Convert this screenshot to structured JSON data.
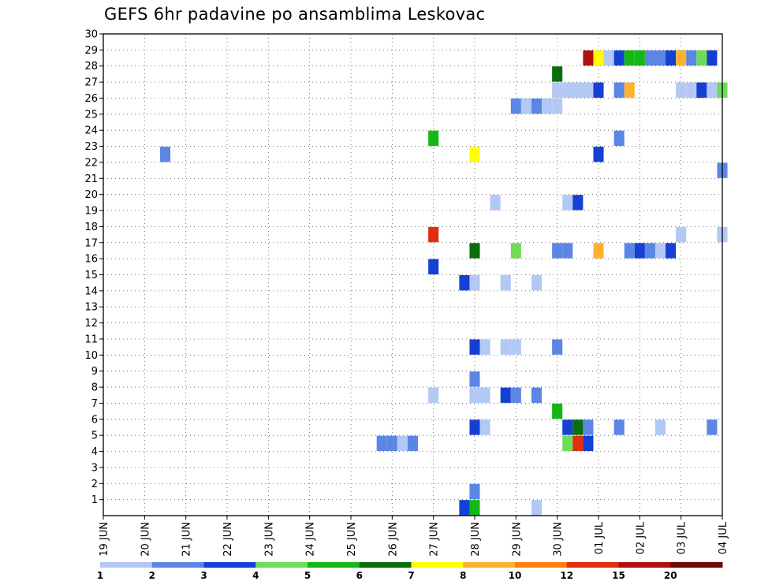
{
  "chart_data": {
    "type": "heatmap",
    "title": "GEFS 6hr padavine po ansamblima Leskovac",
    "x_tick_labels": [
      "19 JUN",
      "20 JUN",
      "21 JUN",
      "22 JUN",
      "23 JUN",
      "24 JUN",
      "25 JUN",
      "26 JUN",
      "27 JUN",
      "28 JUN",
      "29 JUN",
      "30 JUN",
      "01 JUL",
      "02 JUL",
      "03 JUL",
      "04 JUL"
    ],
    "x_range_steps": [
      0,
      60
    ],
    "y_tick_labels": [
      "1",
      "2",
      "3",
      "4",
      "5",
      "6",
      "7",
      "8",
      "9",
      "10",
      "11",
      "12",
      "13",
      "14",
      "15",
      "16",
      "17",
      "18",
      "19",
      "20",
      "21",
      "22",
      "23",
      "24",
      "25",
      "26",
      "27",
      "28",
      "29",
      "30"
    ],
    "y_range": [
      0,
      30
    ],
    "grid": true,
    "legend_placement": "bottom",
    "color_scale": {
      "labels": [
        "1",
        "2",
        "3",
        "4",
        "5",
        "6",
        "7",
        "8",
        "10",
        "12",
        "15",
        "20"
      ],
      "colors": [
        "#b3c8f5",
        "#5b86e5",
        "#1540d4",
        "#6fdc58",
        "#14b814",
        "#0a6e0a",
        "#ffff00",
        "#ffb12e",
        "#ff7f0e",
        "#e02e0e",
        "#b01010",
        "#700808"
      ]
    },
    "cells": [
      {
        "step": 35,
        "member": 0,
        "level": 3
      },
      {
        "step": 36,
        "member": 0,
        "level": 5
      },
      {
        "step": 42,
        "member": 0,
        "level": 1
      },
      {
        "step": 36,
        "member": 1,
        "level": 2
      },
      {
        "step": 27,
        "member": 4,
        "level": 2
      },
      {
        "step": 28,
        "member": 4,
        "level": 2
      },
      {
        "step": 29,
        "member": 4,
        "level": 1
      },
      {
        "step": 30,
        "member": 4,
        "level": 2
      },
      {
        "step": 45,
        "member": 4,
        "level": 4
      },
      {
        "step": 46,
        "member": 4,
        "level": 10
      },
      {
        "step": 47,
        "member": 4,
        "level": 3
      },
      {
        "step": 36,
        "member": 5,
        "level": 3
      },
      {
        "step": 37,
        "member": 5,
        "level": 1
      },
      {
        "step": 45,
        "member": 5,
        "level": 3
      },
      {
        "step": 46,
        "member": 5,
        "level": 6
      },
      {
        "step": 47,
        "member": 5,
        "level": 2
      },
      {
        "step": 50,
        "member": 5,
        "level": 2
      },
      {
        "step": 54,
        "member": 5,
        "level": 1
      },
      {
        "step": 59,
        "member": 5,
        "level": 2
      },
      {
        "step": 44,
        "member": 6,
        "level": 5
      },
      {
        "step": 32,
        "member": 7,
        "level": 1
      },
      {
        "step": 36,
        "member": 7,
        "level": 1
      },
      {
        "step": 37,
        "member": 7,
        "level": 1
      },
      {
        "step": 39,
        "member": 7,
        "level": 3
      },
      {
        "step": 40,
        "member": 7,
        "level": 2
      },
      {
        "step": 42,
        "member": 7,
        "level": 2
      },
      {
        "step": 36,
        "member": 8,
        "level": 2
      },
      {
        "step": 36,
        "member": 10,
        "level": 3
      },
      {
        "step": 37,
        "member": 10,
        "level": 1
      },
      {
        "step": 39,
        "member": 10,
        "level": 1
      },
      {
        "step": 40,
        "member": 10,
        "level": 1
      },
      {
        "step": 44,
        "member": 10,
        "level": 2
      },
      {
        "step": 35,
        "member": 14,
        "level": 3
      },
      {
        "step": 36,
        "member": 14,
        "level": 1
      },
      {
        "step": 39,
        "member": 14,
        "level": 1
      },
      {
        "step": 42,
        "member": 14,
        "level": 1
      },
      {
        "step": 32,
        "member": 15,
        "level": 3
      },
      {
        "step": 36,
        "member": 16,
        "level": 6
      },
      {
        "step": 40,
        "member": 16,
        "level": 4
      },
      {
        "step": 44,
        "member": 16,
        "level": 2
      },
      {
        "step": 45,
        "member": 16,
        "level": 2
      },
      {
        "step": 48,
        "member": 16,
        "level": 8
      },
      {
        "step": 51,
        "member": 16,
        "level": 2
      },
      {
        "step": 52,
        "member": 16,
        "level": 3
      },
      {
        "step": 53,
        "member": 16,
        "level": 2
      },
      {
        "step": 54,
        "member": 16,
        "level": 1
      },
      {
        "step": 55,
        "member": 16,
        "level": 3
      },
      {
        "step": 32,
        "member": 17,
        "level": 10
      },
      {
        "step": 56,
        "member": 17,
        "level": 1
      },
      {
        "step": 60,
        "member": 17,
        "level": 1
      },
      {
        "step": 38,
        "member": 19,
        "level": 1
      },
      {
        "step": 45,
        "member": 19,
        "level": 1
      },
      {
        "step": 46,
        "member": 19,
        "level": 3
      },
      {
        "step": 60,
        "member": 21,
        "level": 2
      },
      {
        "step": 6,
        "member": 22,
        "level": 2
      },
      {
        "step": 36,
        "member": 22,
        "level": 7
      },
      {
        "step": 48,
        "member": 22,
        "level": 3
      },
      {
        "step": 32,
        "member": 23,
        "level": 5
      },
      {
        "step": 50,
        "member": 23,
        "level": 2
      },
      {
        "step": 40,
        "member": 25,
        "level": 2
      },
      {
        "step": 41,
        "member": 25,
        "level": 1
      },
      {
        "step": 42,
        "member": 25,
        "level": 2
      },
      {
        "step": 43,
        "member": 25,
        "level": 1
      },
      {
        "step": 44,
        "member": 25,
        "level": 1
      },
      {
        "step": 44,
        "member": 26,
        "level": 1
      },
      {
        "step": 45,
        "member": 26,
        "level": 1
      },
      {
        "step": 46,
        "member": 26,
        "level": 1
      },
      {
        "step": 47,
        "member": 26,
        "level": 1
      },
      {
        "step": 48,
        "member": 26,
        "level": 3
      },
      {
        "step": 50,
        "member": 26,
        "level": 2
      },
      {
        "step": 51,
        "member": 26,
        "level": 8
      },
      {
        "step": 56,
        "member": 26,
        "level": 1
      },
      {
        "step": 57,
        "member": 26,
        "level": 1
      },
      {
        "step": 58,
        "member": 26,
        "level": 3
      },
      {
        "step": 59,
        "member": 26,
        "level": 1
      },
      {
        "step": 60,
        "member": 26,
        "level": 4
      },
      {
        "step": 44,
        "member": 27,
        "level": 6
      },
      {
        "step": 47,
        "member": 28,
        "level": 11
      },
      {
        "step": 48,
        "member": 28,
        "level": 7
      },
      {
        "step": 49,
        "member": 28,
        "level": 1
      },
      {
        "step": 50,
        "member": 28,
        "level": 3
      },
      {
        "step": 51,
        "member": 28,
        "level": 5
      },
      {
        "step": 52,
        "member": 28,
        "level": 5
      },
      {
        "step": 53,
        "member": 28,
        "level": 2
      },
      {
        "step": 54,
        "member": 28,
        "level": 2
      },
      {
        "step": 55,
        "member": 28,
        "level": 3
      },
      {
        "step": 56,
        "member": 28,
        "level": 8
      },
      {
        "step": 57,
        "member": 28,
        "level": 2
      },
      {
        "step": 58,
        "member": 28,
        "level": 4
      },
      {
        "step": 59,
        "member": 28,
        "level": 3
      }
    ]
  }
}
